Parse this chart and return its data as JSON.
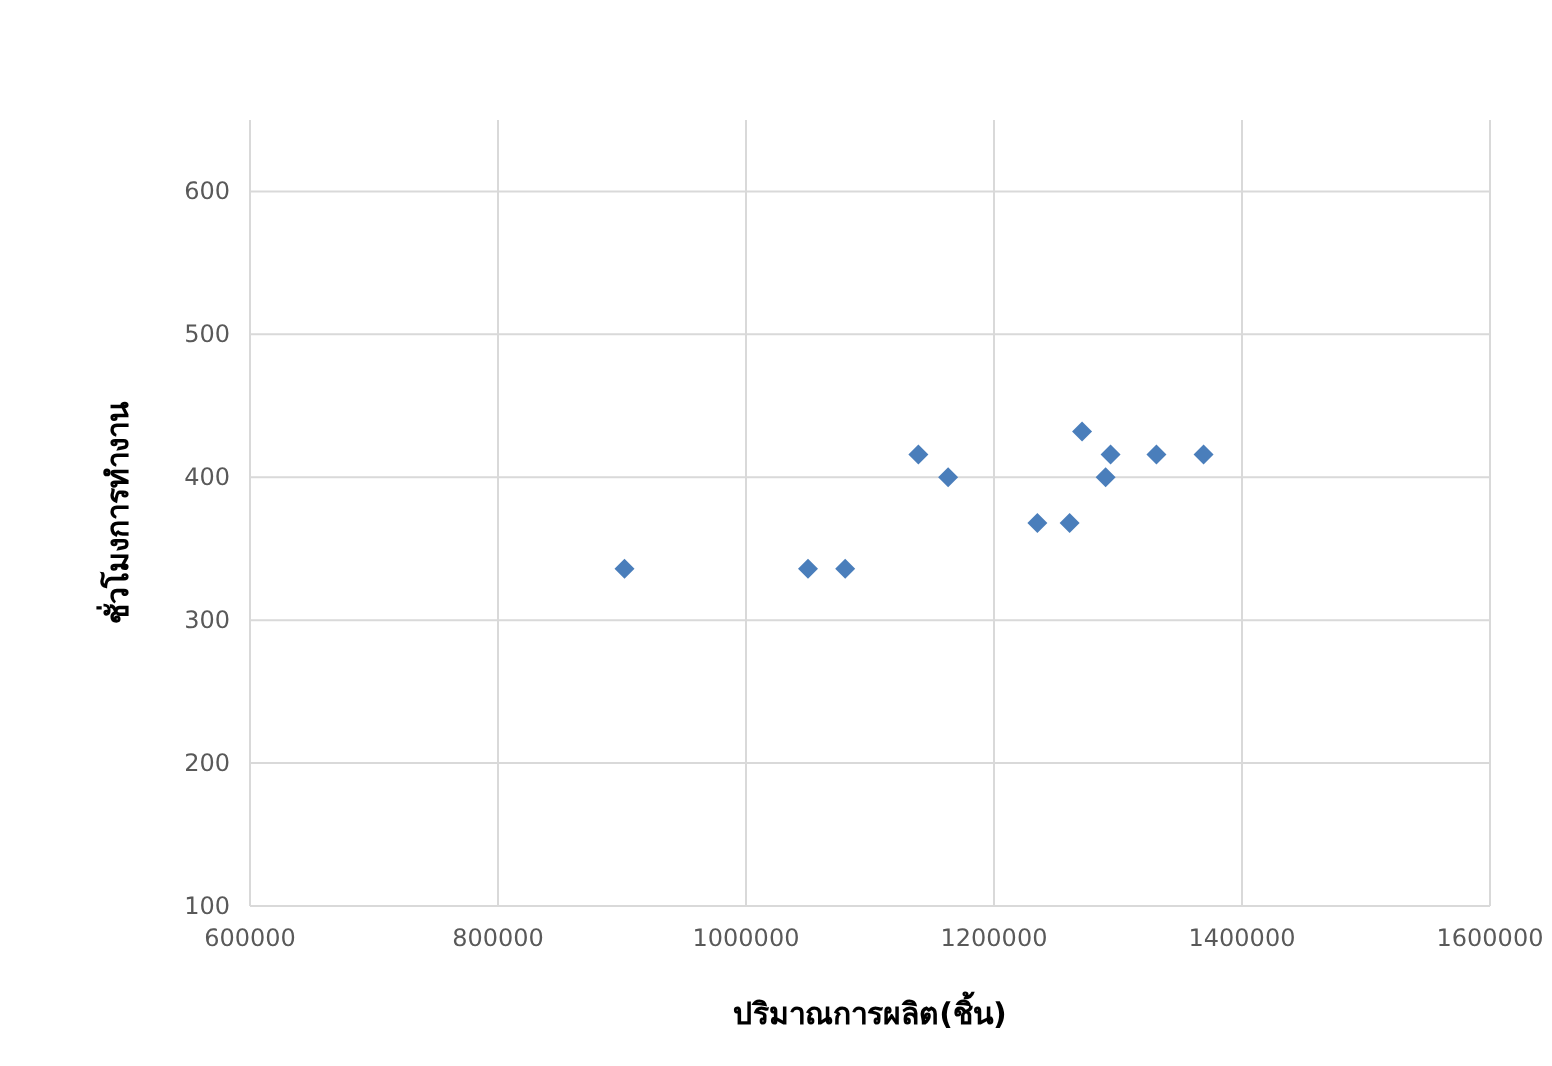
{
  "chart_data": {
    "type": "scatter",
    "xlabel": "ปริมาณการผลิต(ชิ้น)",
    "ylabel": "ชั่วโมงการทำงาน",
    "x": [
      902000,
      1050000,
      1080000,
      1139000,
      1163000,
      1235000,
      1261000,
      1271000,
      1290000,
      1294000,
      1331000,
      1369000
    ],
    "values": [
      336,
      336,
      336,
      416,
      400,
      368,
      368,
      432,
      400,
      416,
      416,
      416
    ],
    "color": "#4a7ebb",
    "marker": "diamond",
    "xlim": [
      600000,
      1600000
    ],
    "xticks": [
      600000,
      800000,
      1000000,
      1200000,
      1400000,
      1600000
    ],
    "ylim": [
      100,
      650
    ],
    "yticks": [
      100,
      200,
      300,
      400,
      500,
      600
    ],
    "grid": true
  }
}
